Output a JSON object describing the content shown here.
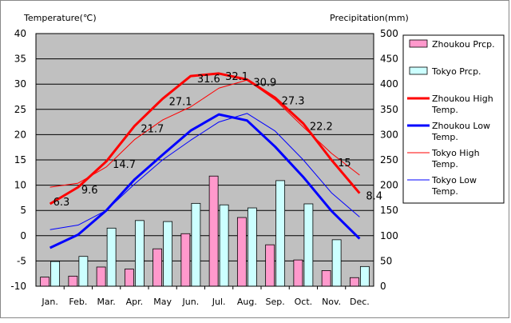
{
  "chart_data": {
    "type": "bar+line",
    "left_axis_label": "Temperature(℃)",
    "right_axis_label": "Precipitation(mm)",
    "left_ylim": [
      -10,
      40
    ],
    "left_ticks": [
      -10,
      -5,
      0,
      5,
      10,
      15,
      20,
      25,
      30,
      35,
      40
    ],
    "right_ylim": [
      0,
      500
    ],
    "right_ticks": [
      0,
      50,
      100,
      150,
      200,
      250,
      300,
      350,
      400,
      450,
      500
    ],
    "categories": [
      "Jan.",
      "Feb.",
      "Mar.",
      "Apr.",
      "May",
      "Jun.",
      "Jul.",
      "Aug.",
      "Sep.",
      "Oct.",
      "Nov.",
      "Dec."
    ],
    "grid": true,
    "legend_position": "right",
    "bar_series": [
      {
        "name": "Zhoukou Prcp.",
        "color": "#ff99cc",
        "values": [
          18,
          20,
          38,
          34,
          74,
          104,
          218,
          136,
          82,
          52,
          31,
          17
        ]
      },
      {
        "name": "Tokyo Prcp.",
        "color": "#ccffff",
        "values": [
          49,
          59,
          115,
          130,
          128,
          164,
          161,
          155,
          209,
          163,
          92,
          39
        ]
      }
    ],
    "line_series": [
      {
        "name": "Zhoukou High Temp.",
        "color": "#ff0000",
        "width": 3,
        "values": [
          6.3,
          9.6,
          14.7,
          21.7,
          27.1,
          31.6,
          32.1,
          30.9,
          27.3,
          22.2,
          15,
          8.4
        ],
        "labels": [
          "6.3",
          "9.6",
          "14.7",
          "21.7",
          "27.1",
          "31.6",
          "32.1",
          "30.9",
          "27.3",
          "22.2",
          "15",
          "8.4"
        ]
      },
      {
        "name": "Zhoukou Low Temp.",
        "color": "#0000ff",
        "width": 3,
        "values": [
          -2.4,
          0.2,
          5,
          11.1,
          16,
          20.8,
          24,
          22.8,
          17.6,
          11.6,
          4.9,
          -0.6
        ]
      },
      {
        "name": "Tokyo High Temp.",
        "color": "#ff0000",
        "width": 1,
        "values": [
          9.6,
          10.4,
          13.6,
          19,
          22.9,
          25.5,
          29.2,
          30.8,
          26.9,
          21.5,
          16.3,
          12
        ]
      },
      {
        "name": "Tokyo Low Temp.",
        "color": "#0000ff",
        "width": 1,
        "values": [
          1.2,
          2.1,
          5,
          10.2,
          15,
          18.9,
          22.5,
          24.2,
          20.7,
          15,
          8.5,
          3.7
        ]
      }
    ]
  }
}
